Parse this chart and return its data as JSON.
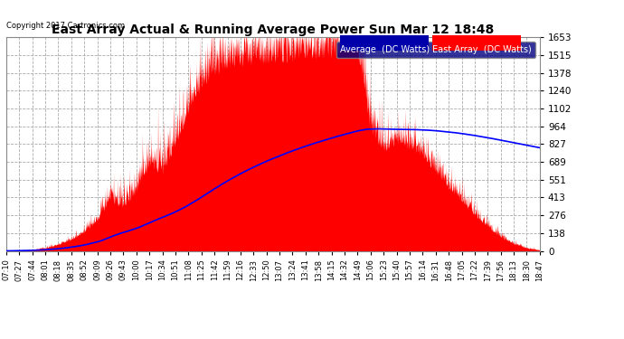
{
  "title": "East Array Actual & Running Average Power Sun Mar 12 18:48",
  "copyright": "Copyright 2017 Cartronics.com",
  "ylabel_right_ticks": [
    0.0,
    137.8,
    275.5,
    413.3,
    551.1,
    688.8,
    826.6,
    964.4,
    1102.1,
    1239.9,
    1377.7,
    1515.4,
    1653.2
  ],
  "ymax": 1653.2,
  "ymin": 0.0,
  "x_labels": [
    "07:10",
    "07:27",
    "07:44",
    "08:01",
    "08:18",
    "08:35",
    "08:52",
    "09:09",
    "09:26",
    "09:43",
    "10:00",
    "10:17",
    "10:34",
    "10:51",
    "11:08",
    "11:25",
    "11:42",
    "11:59",
    "12:16",
    "12:33",
    "12:50",
    "13:07",
    "13:24",
    "13:41",
    "13:58",
    "14:15",
    "14:32",
    "14:49",
    "15:06",
    "15:23",
    "15:40",
    "15:57",
    "16:14",
    "16:31",
    "16:48",
    "17:05",
    "17:22",
    "17:39",
    "17:56",
    "18:13",
    "18:30",
    "18:47"
  ],
  "background_color": "#ffffff",
  "plot_bg_color": "#ffffff",
  "grid_color": "#aaaaaa",
  "area_color": "#ff0000",
  "avg_line_color": "#0000ff",
  "title_color": "#000000",
  "tick_color": "#000000",
  "copyright_color": "#000000",
  "legend_avg_bg": "#0000aa",
  "legend_east_bg": "#ff0000",
  "legend_text_color": "#ffffff"
}
